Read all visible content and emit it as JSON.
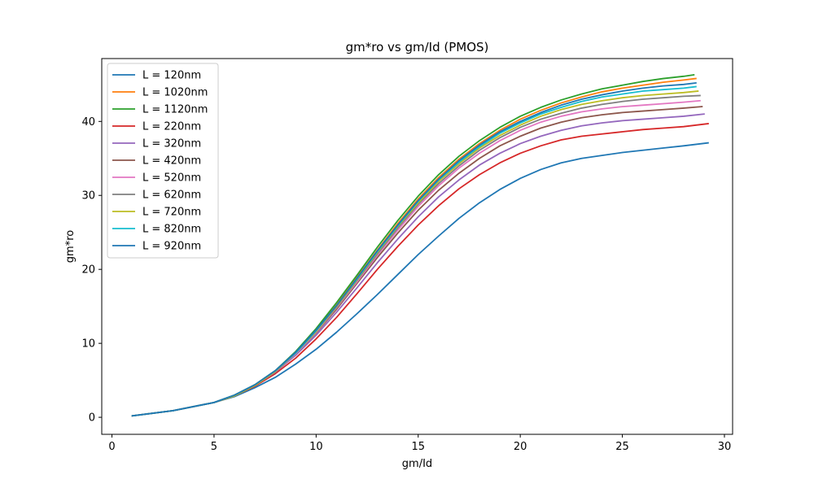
{
  "chart_data": {
    "type": "line",
    "title": "gm*ro vs gm/Id (PMOS)",
    "xlabel": "gm/Id",
    "ylabel": "gm*ro",
    "xlim": [
      -0.5,
      30.4
    ],
    "ylim": [
      -2.3,
      48.5
    ],
    "xticks": [
      0,
      5,
      10,
      15,
      20,
      25,
      30
    ],
    "yticks": [
      0,
      10,
      20,
      30,
      40
    ],
    "grid": false,
    "legend_position": "top-left",
    "series": [
      {
        "name": "L = 120nm",
        "color": "#1f77b4",
        "x": [
          1.0,
          3.0,
          5.0,
          6.0,
          7.0,
          8.0,
          9.0,
          10.0,
          11.0,
          12.0,
          13.0,
          14.0,
          15.0,
          16.0,
          17.0,
          18.0,
          19.0,
          20.0,
          21.0,
          22.0,
          23.0,
          24.0,
          25.0,
          26.0,
          27.0,
          28.0,
          29.2
        ],
        "y": [
          0.2,
          0.9,
          2.0,
          2.8,
          4.0,
          5.4,
          7.2,
          9.2,
          11.5,
          14.0,
          16.6,
          19.3,
          22.0,
          24.5,
          26.9,
          29.0,
          30.8,
          32.3,
          33.5,
          34.4,
          35.0,
          35.4,
          35.8,
          36.1,
          36.4,
          36.7,
          37.1
        ]
      },
      {
        "name": "L = 1020nm",
        "color": "#ff7f0e",
        "x": [
          1.0,
          3.0,
          5.0,
          6.0,
          7.0,
          8.0,
          9.0,
          10.0,
          11.0,
          12.0,
          13.0,
          14.0,
          15.0,
          16.0,
          17.0,
          18.0,
          19.0,
          20.0,
          21.0,
          22.0,
          23.0,
          24.0,
          25.0,
          26.0,
          27.0,
          28.0,
          28.6
        ],
        "y": [
          0.2,
          0.9,
          2.0,
          3.0,
          4.4,
          6.3,
          8.8,
          11.8,
          15.2,
          18.9,
          22.6,
          26.2,
          29.5,
          32.4,
          34.9,
          37.0,
          38.8,
          40.3,
          41.5,
          42.5,
          43.3,
          44.0,
          44.5,
          44.9,
          45.3,
          45.6,
          45.8
        ]
      },
      {
        "name": "L = 1120nm",
        "color": "#2ca02c",
        "x": [
          1.0,
          3.0,
          5.0,
          6.0,
          7.0,
          8.0,
          9.0,
          10.0,
          11.0,
          12.0,
          13.0,
          14.0,
          15.0,
          16.0,
          17.0,
          18.0,
          19.0,
          20.0,
          21.0,
          22.0,
          23.0,
          24.0,
          25.0,
          26.0,
          27.0,
          28.0,
          28.5
        ],
        "y": [
          0.2,
          0.9,
          2.0,
          3.0,
          4.4,
          6.3,
          8.9,
          12.0,
          15.5,
          19.2,
          23.0,
          26.6,
          29.9,
          32.8,
          35.3,
          37.4,
          39.2,
          40.7,
          41.9,
          42.9,
          43.7,
          44.4,
          44.9,
          45.4,
          45.8,
          46.1,
          46.3
        ]
      },
      {
        "name": "L = 220nm",
        "color": "#d62728",
        "x": [
          1.0,
          3.0,
          5.0,
          6.0,
          7.0,
          8.0,
          9.0,
          10.0,
          11.0,
          12.0,
          13.0,
          14.0,
          15.0,
          16.0,
          17.0,
          18.0,
          19.0,
          20.0,
          21.0,
          22.0,
          23.0,
          24.0,
          25.0,
          26.0,
          27.0,
          28.0,
          29.2
        ],
        "y": [
          0.2,
          0.9,
          2.0,
          2.9,
          4.2,
          5.9,
          8.0,
          10.6,
          13.5,
          16.7,
          20.0,
          23.1,
          26.0,
          28.6,
          30.9,
          32.8,
          34.4,
          35.7,
          36.7,
          37.5,
          38.0,
          38.3,
          38.6,
          38.9,
          39.1,
          39.3,
          39.7
        ]
      },
      {
        "name": "L = 320nm",
        "color": "#9467bd",
        "x": [
          1.0,
          3.0,
          5.0,
          6.0,
          7.0,
          8.0,
          9.0,
          10.0,
          11.0,
          12.0,
          13.0,
          14.0,
          15.0,
          16.0,
          17.0,
          18.0,
          19.0,
          20.0,
          21.0,
          22.0,
          23.0,
          24.0,
          25.0,
          26.0,
          27.0,
          28.0,
          29.0
        ],
        "y": [
          0.2,
          0.9,
          2.0,
          2.9,
          4.3,
          6.1,
          8.4,
          11.1,
          14.2,
          17.5,
          20.9,
          24.1,
          27.1,
          29.8,
          32.1,
          34.1,
          35.7,
          37.0,
          38.0,
          38.8,
          39.4,
          39.8,
          40.1,
          40.3,
          40.5,
          40.7,
          41.0
        ]
      },
      {
        "name": "L = 420nm",
        "color": "#8c564b",
        "x": [
          1.0,
          3.0,
          5.0,
          6.0,
          7.0,
          8.0,
          9.0,
          10.0,
          11.0,
          12.0,
          13.0,
          14.0,
          15.0,
          16.0,
          17.0,
          18.0,
          19.0,
          20.0,
          21.0,
          22.0,
          23.0,
          24.0,
          25.0,
          26.0,
          27.0,
          28.0,
          28.9
        ],
        "y": [
          0.2,
          0.9,
          2.0,
          2.9,
          4.3,
          6.2,
          8.6,
          11.4,
          14.6,
          18.1,
          21.6,
          24.9,
          28.0,
          30.7,
          33.0,
          35.0,
          36.7,
          38.0,
          39.1,
          39.9,
          40.5,
          40.9,
          41.2,
          41.4,
          41.6,
          41.8,
          42.0
        ]
      },
      {
        "name": "L = 520nm",
        "color": "#e377c2",
        "x": [
          1.0,
          3.0,
          5.0,
          6.0,
          7.0,
          8.0,
          9.0,
          10.0,
          11.0,
          12.0,
          13.0,
          14.0,
          15.0,
          16.0,
          17.0,
          18.0,
          19.0,
          20.0,
          21.0,
          22.0,
          23.0,
          24.0,
          25.0,
          26.0,
          27.0,
          28.0,
          28.8
        ],
        "y": [
          0.2,
          0.9,
          2.0,
          2.9,
          4.3,
          6.2,
          8.6,
          11.5,
          14.8,
          18.3,
          21.9,
          25.3,
          28.5,
          31.3,
          33.7,
          35.7,
          37.4,
          38.8,
          39.9,
          40.7,
          41.3,
          41.7,
          42.0,
          42.2,
          42.4,
          42.6,
          42.8
        ]
      },
      {
        "name": "L = 620nm",
        "color": "#7f7f7f",
        "x": [
          1.0,
          3.0,
          5.0,
          6.0,
          7.0,
          8.0,
          9.0,
          10.0,
          11.0,
          12.0,
          13.0,
          14.0,
          15.0,
          16.0,
          17.0,
          18.0,
          19.0,
          20.0,
          21.0,
          22.0,
          23.0,
          24.0,
          25.0,
          26.0,
          27.0,
          28.0,
          28.8
        ],
        "y": [
          0.2,
          0.9,
          2.0,
          2.9,
          4.3,
          6.2,
          8.7,
          11.6,
          14.9,
          18.5,
          22.1,
          25.6,
          28.8,
          31.6,
          34.0,
          36.1,
          37.8,
          39.2,
          40.3,
          41.1,
          41.8,
          42.3,
          42.7,
          43.0,
          43.2,
          43.4,
          43.5
        ]
      },
      {
        "name": "L = 720nm",
        "color": "#bcbd22",
        "x": [
          1.0,
          3.0,
          5.0,
          6.0,
          7.0,
          8.0,
          9.0,
          10.0,
          11.0,
          12.0,
          13.0,
          14.0,
          15.0,
          16.0,
          17.0,
          18.0,
          19.0,
          20.0,
          21.0,
          22.0,
          23.0,
          24.0,
          25.0,
          26.0,
          27.0,
          28.0,
          28.7
        ],
        "y": [
          0.2,
          0.9,
          2.0,
          2.9,
          4.3,
          6.2,
          8.7,
          11.6,
          15.0,
          18.6,
          22.3,
          25.8,
          29.0,
          31.9,
          34.3,
          36.4,
          38.1,
          39.5,
          40.7,
          41.6,
          42.3,
          42.8,
          43.2,
          43.5,
          43.7,
          43.9,
          44.1
        ]
      },
      {
        "name": "L = 820nm",
        "color": "#17becf",
        "x": [
          1.0,
          3.0,
          5.0,
          6.0,
          7.0,
          8.0,
          9.0,
          10.0,
          11.0,
          12.0,
          13.0,
          14.0,
          15.0,
          16.0,
          17.0,
          18.0,
          19.0,
          20.0,
          21.0,
          22.0,
          23.0,
          24.0,
          25.0,
          26.0,
          27.0,
          28.0,
          28.6
        ],
        "y": [
          0.2,
          0.9,
          2.0,
          3.0,
          4.4,
          6.3,
          8.7,
          11.7,
          15.1,
          18.7,
          22.4,
          25.9,
          29.2,
          32.1,
          34.5,
          36.6,
          38.4,
          39.8,
          41.0,
          41.9,
          42.7,
          43.3,
          43.7,
          44.1,
          44.3,
          44.5,
          44.7
        ]
      },
      {
        "name": "L = 920nm",
        "color": "#1f77b4",
        "x": [
          1.0,
          3.0,
          5.0,
          6.0,
          7.0,
          8.0,
          9.0,
          10.0,
          11.0,
          12.0,
          13.0,
          14.0,
          15.0,
          16.0,
          17.0,
          18.0,
          19.0,
          20.0,
          21.0,
          22.0,
          23.0,
          24.0,
          25.0,
          26.0,
          27.0,
          28.0,
          28.6
        ],
        "y": [
          0.2,
          0.9,
          2.0,
          3.0,
          4.4,
          6.3,
          8.8,
          11.8,
          15.1,
          18.8,
          22.5,
          26.0,
          29.3,
          32.2,
          34.7,
          36.8,
          38.6,
          40.0,
          41.2,
          42.2,
          43.0,
          43.6,
          44.1,
          44.5,
          44.8,
          45.0,
          45.2
        ]
      }
    ]
  }
}
